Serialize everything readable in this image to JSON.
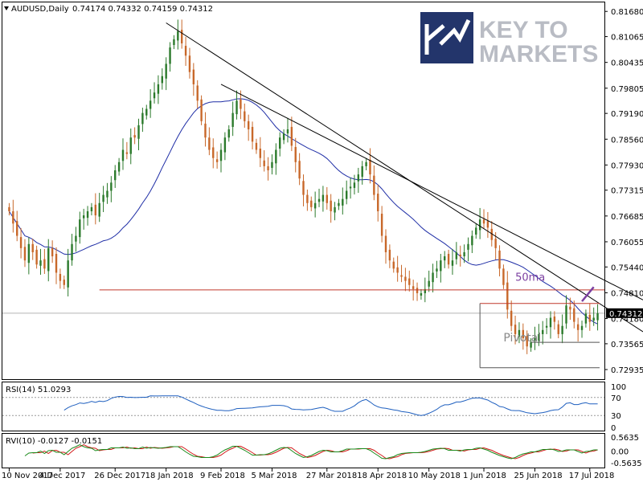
{
  "header": {
    "symbol": "AUDUSD,Daily",
    "ohlc": "0.74174 0.74332 0.74159 0.74312"
  },
  "logo": {
    "line1": "KEY TO",
    "line2": "MARKETS",
    "color": "#23356b"
  },
  "chart_data": [
    {
      "type": "candlestick",
      "title": "AUDUSD,Daily",
      "ylabel": "",
      "ylim": [
        0.727,
        0.819
      ],
      "y_ticks": [
        "0.81680",
        "0.81065",
        "0.80435",
        "0.79805",
        "0.79190",
        "0.78560",
        "0.77930",
        "0.77315",
        "0.76685",
        "0.76055",
        "0.75440",
        "0.74810",
        "0.74180",
        "0.73565",
        "0.72935"
      ],
      "x_ticks": [
        "10 Nov 2017",
        "4 Dec 2017",
        "26 Dec 2017",
        "18 Jan 2018",
        "9 Feb 2018",
        "5 Mar 2018",
        "27 Mar 2018",
        "18 Apr 2018",
        "10 May 2018",
        "1 Jun 2018",
        "25 Jun 2018",
        "17 Jul 2018"
      ],
      "last_price": "0.74312",
      "candle_colors": {
        "up": "#2b7a2b",
        "down": "#c8682a"
      },
      "series": [
        {
          "name": "Price",
          "closes": [
            0.768,
            0.765,
            0.762,
            0.759,
            0.756,
            0.76,
            0.758,
            0.755,
            0.756,
            0.754,
            0.759,
            0.757,
            0.753,
            0.751,
            0.75,
            0.756,
            0.76,
            0.762,
            0.766,
            0.767,
            0.768,
            0.769,
            0.767,
            0.77,
            0.772,
            0.773,
            0.775,
            0.778,
            0.78,
            0.783,
            0.782,
            0.786,
            0.786,
            0.789,
            0.792,
            0.793,
            0.795,
            0.797,
            0.799,
            0.801,
            0.804,
            0.808,
            0.81,
            0.812,
            0.809,
            0.806,
            0.802,
            0.799,
            0.795,
            0.79,
            0.786,
            0.783,
            0.781,
            0.78,
            0.783,
            0.786,
            0.788,
            0.792,
            0.795,
            0.793,
            0.79,
            0.788,
            0.785,
            0.783,
            0.781,
            0.779,
            0.778,
            0.78,
            0.783,
            0.786,
            0.787,
            0.788,
            0.784,
            0.78,
            0.776,
            0.772,
            0.77,
            0.769,
            0.77,
            0.771,
            0.772,
            0.77,
            0.768,
            0.769,
            0.77,
            0.771,
            0.773,
            0.774,
            0.775,
            0.777,
            0.779,
            0.78,
            0.777,
            0.772,
            0.768,
            0.762,
            0.758,
            0.756,
            0.754,
            0.753,
            0.752,
            0.751,
            0.75,
            0.749,
            0.748,
            0.748,
            0.749,
            0.751,
            0.753,
            0.754,
            0.756,
            0.757,
            0.755,
            0.756,
            0.758,
            0.757,
            0.758,
            0.76,
            0.762,
            0.764,
            0.766,
            0.765,
            0.764,
            0.761,
            0.759,
            0.754,
            0.75,
            0.744,
            0.74,
            0.738,
            0.739,
            0.737,
            0.735,
            0.736,
            0.737,
            0.738,
            0.739,
            0.74,
            0.742,
            0.741,
            0.738,
            0.74,
            0.745,
            0.744,
            0.741,
            0.739,
            0.74,
            0.743,
            0.741,
            0.742,
            0.7431
          ]
        },
        {
          "name": "50ma",
          "color": "#1f2ea6"
        },
        {
          "name": "RSI(14)",
          "value": "51.0293",
          "color": "#1e5fbf"
        },
        {
          "name": "RVI(10)",
          "values": "-0.0127 -0.0151",
          "colors": [
            "#1a8a1a",
            "#d21a1a"
          ]
        }
      ],
      "annotations": {
        "ma_label": "50ma",
        "pivot_label": "Pivotal",
        "horizontal_level": 0.7488,
        "pivot_box": {
          "top": 0.7455,
          "bottom": 0.7298
        },
        "trendlines": [
          {
            "from_date": "18 Jan 2018",
            "from": 0.814,
            "to_date": "17 Jul 2018",
            "to": 0.747
          },
          {
            "from_date": "9 Feb 2018",
            "from": 0.799,
            "to_date": "17 Jul 2018",
            "to": 0.753
          }
        ],
        "colors": {
          "level": "#c0392b",
          "ma_label": "#7b3fa0",
          "pivot": "#888888"
        }
      }
    },
    {
      "type": "line",
      "title": "RSI(14) 51.0293",
      "ylim": [
        0,
        100
      ],
      "y_ticks": [
        "100",
        "70",
        "30",
        "0"
      ],
      "levels": [
        70,
        30
      ]
    },
    {
      "type": "line",
      "title": "RVI(10) -0.0127 -0.0151",
      "ylim": [
        -0.65,
        0.65
      ],
      "y_ticks": [
        "0.5635",
        "0.00",
        "-0.5635"
      ]
    }
  ]
}
